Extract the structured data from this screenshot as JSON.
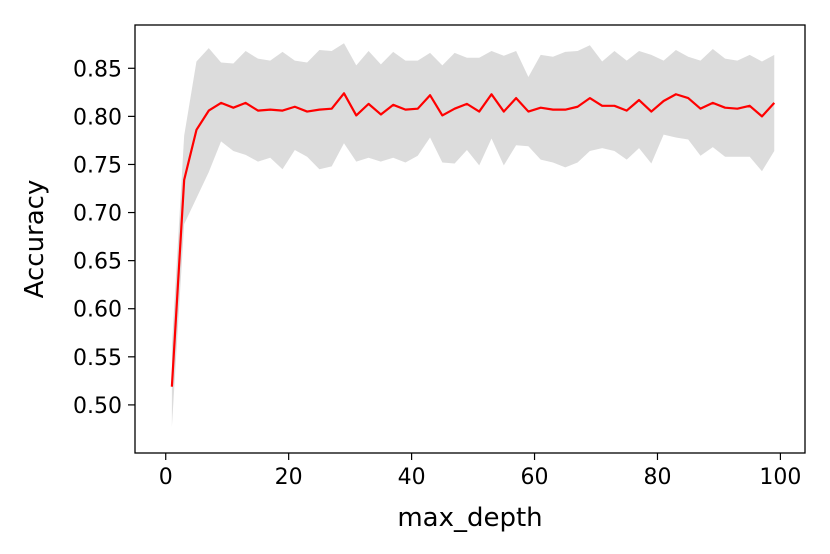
{
  "chart_data": {
    "type": "line",
    "title": "",
    "xlabel": "max_depth",
    "ylabel": "Accuracy",
    "xlim": [
      -5,
      104
    ],
    "ylim": [
      0.45,
      0.895
    ],
    "xticks": [
      0,
      20,
      40,
      60,
      80,
      100
    ],
    "yticks": [
      0.5,
      0.55,
      0.6,
      0.65,
      0.7,
      0.75,
      0.8,
      0.85
    ],
    "grid": false,
    "legend": "none",
    "colors": {
      "line": "#ff0000",
      "band": "#dcdcdc"
    },
    "series": [
      {
        "x": [
          1,
          3,
          5,
          7,
          9,
          11,
          13,
          15,
          17,
          19,
          21,
          23,
          25,
          27,
          29,
          31,
          33,
          35,
          37,
          39,
          41,
          43,
          45,
          47,
          49,
          51,
          53,
          55,
          57,
          59,
          61,
          63,
          65,
          67,
          69,
          71,
          73,
          75,
          77,
          79,
          81,
          83,
          85,
          87,
          89,
          91,
          93,
          95,
          97,
          99
        ],
        "values": [
          0.519,
          0.734,
          0.786,
          0.806,
          0.814,
          0.809,
          0.814,
          0.806,
          0.807,
          0.806,
          0.81,
          0.805,
          0.807,
          0.808,
          0.824,
          0.801,
          0.813,
          0.802,
          0.812,
          0.807,
          0.808,
          0.822,
          0.801,
          0.808,
          0.813,
          0.805,
          0.823,
          0.805,
          0.819,
          0.805,
          0.809,
          0.807,
          0.807,
          0.81,
          0.819,
          0.811,
          0.811,
          0.806,
          0.817,
          0.805,
          0.816,
          0.823,
          0.819,
          0.808,
          0.814,
          0.809,
          0.808,
          0.811,
          0.8,
          0.814
        ],
        "upper": [
          0.561,
          0.78,
          0.857,
          0.871,
          0.856,
          0.855,
          0.868,
          0.86,
          0.858,
          0.867,
          0.858,
          0.856,
          0.869,
          0.868,
          0.876,
          0.853,
          0.868,
          0.854,
          0.867,
          0.858,
          0.858,
          0.866,
          0.853,
          0.866,
          0.861,
          0.861,
          0.868,
          0.863,
          0.868,
          0.841,
          0.864,
          0.862,
          0.867,
          0.868,
          0.874,
          0.857,
          0.868,
          0.858,
          0.868,
          0.864,
          0.858,
          0.869,
          0.862,
          0.858,
          0.87,
          0.86,
          0.858,
          0.864,
          0.857,
          0.864
        ],
        "lower": [
          0.477,
          0.688,
          0.715,
          0.742,
          0.774,
          0.764,
          0.76,
          0.753,
          0.757,
          0.745,
          0.765,
          0.758,
          0.745,
          0.748,
          0.772,
          0.753,
          0.757,
          0.753,
          0.757,
          0.752,
          0.759,
          0.778,
          0.752,
          0.751,
          0.765,
          0.749,
          0.777,
          0.749,
          0.77,
          0.769,
          0.755,
          0.752,
          0.747,
          0.752,
          0.764,
          0.767,
          0.764,
          0.755,
          0.767,
          0.751,
          0.781,
          0.778,
          0.776,
          0.759,
          0.768,
          0.758,
          0.758,
          0.758,
          0.743,
          0.764
        ]
      }
    ]
  }
}
